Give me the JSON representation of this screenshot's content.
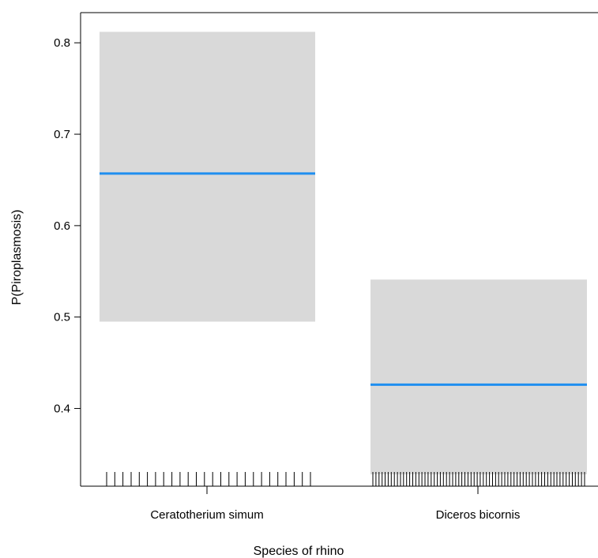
{
  "chart_data": {
    "type": "bar",
    "xlabel": "Species of rhino",
    "ylabel": "P(Piroplasmosis)",
    "categories": [
      "Ceratotherium simum",
      "Diceros bicornis"
    ],
    "series": [
      {
        "estimate": [
          0.657,
          0.426
        ],
        "lower": [
          0.495,
          0.328
        ],
        "upper": [
          0.812,
          0.541
        ]
      }
    ],
    "yticks": [
      "0.4",
      "0.5",
      "0.6",
      "0.7",
      "0.8"
    ],
    "yrange": [
      0.315,
      0.833
    ],
    "rug_counts": [
      26,
      70
    ],
    "colors": {
      "estimate_line": "#1f8ff0",
      "ci_band": "#d9d9d9",
      "axis": "#000000"
    }
  }
}
